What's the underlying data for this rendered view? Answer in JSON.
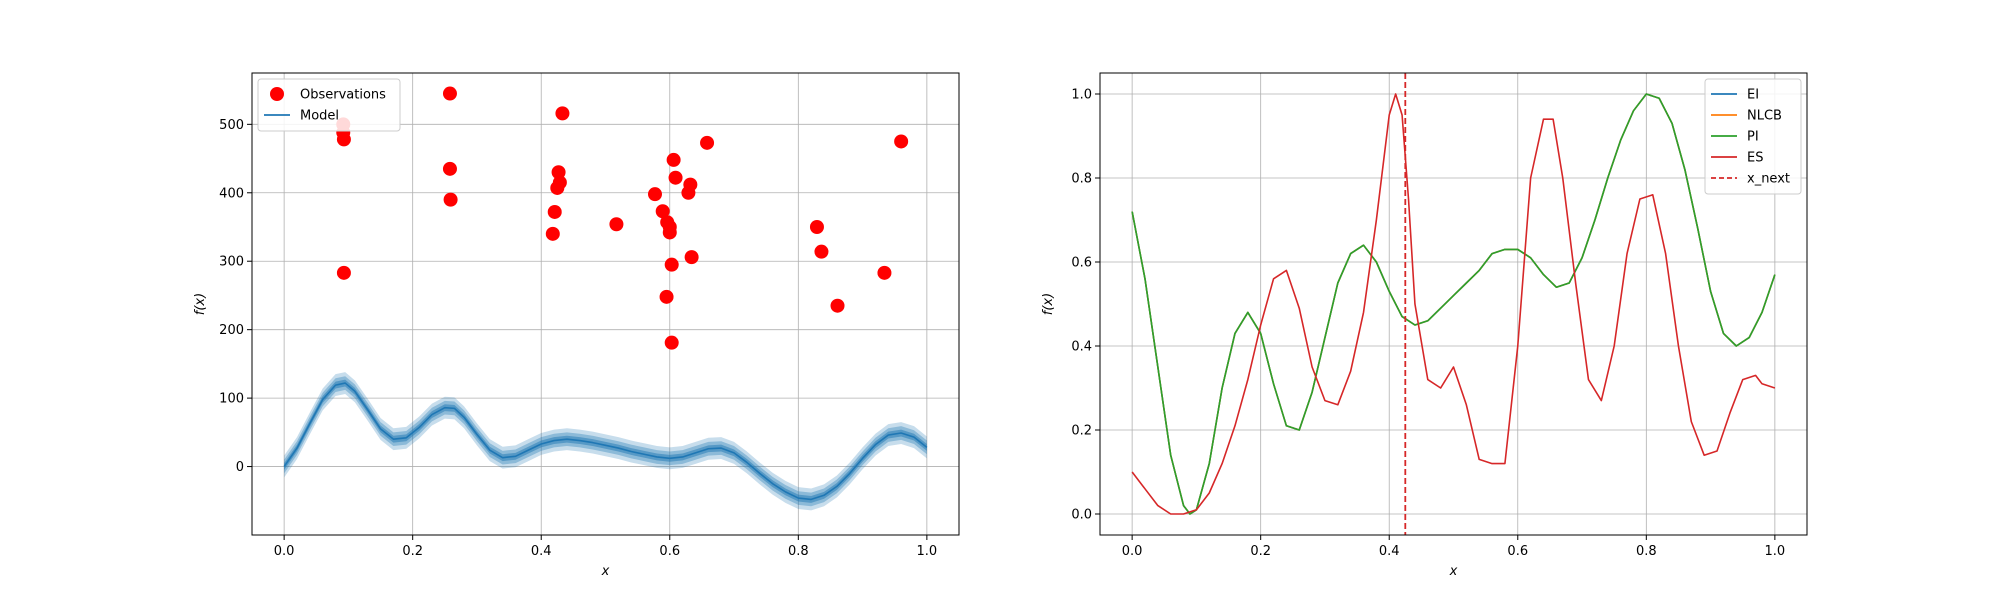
{
  "chart_data": [
    {
      "type": "scatter",
      "xlabel": "x",
      "ylabel": "f(x)",
      "xlim": [
        -0.05,
        1.05
      ],
      "ylim": [
        -100,
        575
      ],
      "xticks": [
        "0.0",
        "0.2",
        "0.4",
        "0.6",
        "0.8",
        "1.0"
      ],
      "yticks": [
        "0",
        "100",
        "200",
        "300",
        "400",
        "500"
      ],
      "grid": true,
      "legend_placement": "upper-left",
      "series": [
        {
          "name": "Observations",
          "kind": "points",
          "color": "#ff0000",
          "x": [
            0.092,
            0.092,
            0.093,
            0.093,
            0.258,
            0.258,
            0.259,
            0.418,
            0.421,
            0.425,
            0.427,
            0.429,
            0.433,
            0.517,
            0.577,
            0.589,
            0.595,
            0.596,
            0.6,
            0.6,
            0.603,
            0.603,
            0.606,
            0.609,
            0.629,
            0.632,
            0.634,
            0.658,
            0.829,
            0.836,
            0.861,
            0.934,
            0.96
          ],
          "y": [
            500,
            488,
            478,
            283,
            545,
            435,
            390,
            340,
            372,
            407,
            430,
            415,
            516,
            354,
            398,
            373,
            248,
            357,
            342,
            350,
            181,
            295,
            448,
            422,
            400,
            412,
            306,
            473,
            350,
            314,
            235,
            283,
            475
          ]
        },
        {
          "name": "Model",
          "kind": "line",
          "color": "#1f77b4",
          "x": [
            0.0,
            0.02,
            0.04,
            0.06,
            0.08,
            0.095,
            0.11,
            0.13,
            0.15,
            0.17,
            0.19,
            0.21,
            0.23,
            0.25,
            0.265,
            0.28,
            0.3,
            0.32,
            0.34,
            0.36,
            0.38,
            0.4,
            0.42,
            0.44,
            0.46,
            0.48,
            0.5,
            0.52,
            0.54,
            0.56,
            0.58,
            0.6,
            0.62,
            0.64,
            0.66,
            0.68,
            0.7,
            0.72,
            0.74,
            0.76,
            0.78,
            0.8,
            0.82,
            0.84,
            0.86,
            0.88,
            0.9,
            0.92,
            0.94,
            0.96,
            0.98,
            1.0
          ],
          "y": [
            0,
            27,
            63,
            98,
            119,
            122,
            110,
            83,
            55,
            40,
            42,
            57,
            76,
            86,
            85,
            72,
            47,
            24,
            13,
            15,
            24,
            33,
            38,
            40,
            38,
            35,
            31,
            27,
            22,
            18,
            14,
            12,
            14,
            20,
            26,
            27,
            20,
            6,
            -10,
            -25,
            -37,
            -46,
            -48,
            -42,
            -29,
            -10,
            12,
            32,
            46,
            49,
            43,
            28
          ],
          "band_color": "#1f77b4"
        }
      ]
    },
    {
      "type": "line",
      "xlabel": "x",
      "ylabel": "f(x)",
      "xlim": [
        -0.05,
        1.05
      ],
      "ylim": [
        -0.05,
        1.05
      ],
      "xticks": [
        "0.0",
        "0.2",
        "0.4",
        "0.6",
        "0.8",
        "1.0"
      ],
      "yticks": [
        "0.0",
        "0.2",
        "0.4",
        "0.6",
        "0.8",
        "1.0"
      ],
      "grid": true,
      "legend_placement": "upper-right",
      "x_next": 0.425,
      "series": [
        {
          "name": "EI",
          "color": "#1f77b4",
          "dashed": false,
          "x": [
            0.0,
            0.02,
            0.04,
            0.06,
            0.08,
            0.09,
            0.1,
            0.12,
            0.14,
            0.16,
            0.18,
            0.2,
            0.22,
            0.24,
            0.26,
            0.28,
            0.3,
            0.32,
            0.34,
            0.36,
            0.38,
            0.4,
            0.42,
            0.44,
            0.46,
            0.48,
            0.5,
            0.52,
            0.54,
            0.56,
            0.58,
            0.6,
            0.62,
            0.64,
            0.66,
            0.68,
            0.7,
            0.72,
            0.74,
            0.76,
            0.78,
            0.8,
            0.82,
            0.84,
            0.86,
            0.88,
            0.9,
            0.92,
            0.94,
            0.96,
            0.98,
            1.0
          ],
          "y": [
            0.72,
            0.56,
            0.35,
            0.14,
            0.02,
            0.0,
            0.01,
            0.12,
            0.3,
            0.43,
            0.48,
            0.43,
            0.31,
            0.21,
            0.2,
            0.29,
            0.42,
            0.55,
            0.62,
            0.64,
            0.6,
            0.53,
            0.47,
            0.45,
            0.46,
            0.49,
            0.52,
            0.55,
            0.58,
            0.62,
            0.63,
            0.63,
            0.61,
            0.57,
            0.54,
            0.55,
            0.61,
            0.7,
            0.8,
            0.89,
            0.96,
            1.0,
            0.99,
            0.93,
            0.82,
            0.68,
            0.53,
            0.43,
            0.4,
            0.42,
            0.48,
            0.57
          ]
        },
        {
          "name": "NLCB",
          "color": "#ff7f0e",
          "dashed": false,
          "x": [
            0.0,
            0.02,
            0.04,
            0.06,
            0.08,
            0.09,
            0.1,
            0.12,
            0.14,
            0.16,
            0.18,
            0.2,
            0.22,
            0.24,
            0.26,
            0.28,
            0.3,
            0.32,
            0.34,
            0.36,
            0.38,
            0.4,
            0.42,
            0.44,
            0.46,
            0.48,
            0.5,
            0.52,
            0.54,
            0.56,
            0.58,
            0.6,
            0.62,
            0.64,
            0.66,
            0.68,
            0.7,
            0.72,
            0.74,
            0.76,
            0.78,
            0.8,
            0.82,
            0.84,
            0.86,
            0.88,
            0.9,
            0.92,
            0.94,
            0.96,
            0.98,
            1.0
          ],
          "y": [
            0.72,
            0.56,
            0.35,
            0.14,
            0.02,
            0.0,
            0.01,
            0.12,
            0.3,
            0.43,
            0.48,
            0.43,
            0.31,
            0.21,
            0.2,
            0.29,
            0.42,
            0.55,
            0.62,
            0.64,
            0.6,
            0.53,
            0.47,
            0.45,
            0.46,
            0.49,
            0.52,
            0.55,
            0.58,
            0.62,
            0.63,
            0.63,
            0.61,
            0.57,
            0.54,
            0.55,
            0.61,
            0.7,
            0.8,
            0.89,
            0.96,
            1.0,
            0.99,
            0.93,
            0.82,
            0.68,
            0.53,
            0.43,
            0.4,
            0.42,
            0.48,
            0.57
          ]
        },
        {
          "name": "PI",
          "color": "#2ca02c",
          "dashed": false,
          "x": [
            0.0,
            0.02,
            0.04,
            0.06,
            0.08,
            0.09,
            0.1,
            0.12,
            0.14,
            0.16,
            0.18,
            0.2,
            0.22,
            0.24,
            0.26,
            0.28,
            0.3,
            0.32,
            0.34,
            0.36,
            0.38,
            0.4,
            0.42,
            0.44,
            0.46,
            0.48,
            0.5,
            0.52,
            0.54,
            0.56,
            0.58,
            0.6,
            0.62,
            0.64,
            0.66,
            0.68,
            0.7,
            0.72,
            0.74,
            0.76,
            0.78,
            0.8,
            0.82,
            0.84,
            0.86,
            0.88,
            0.9,
            0.92,
            0.94,
            0.96,
            0.98,
            1.0
          ],
          "y": [
            0.72,
            0.56,
            0.35,
            0.14,
            0.02,
            0.0,
            0.01,
            0.12,
            0.3,
            0.43,
            0.48,
            0.43,
            0.31,
            0.21,
            0.2,
            0.29,
            0.42,
            0.55,
            0.62,
            0.64,
            0.6,
            0.53,
            0.47,
            0.45,
            0.46,
            0.49,
            0.52,
            0.55,
            0.58,
            0.62,
            0.63,
            0.63,
            0.61,
            0.57,
            0.54,
            0.55,
            0.61,
            0.7,
            0.8,
            0.89,
            0.96,
            1.0,
            0.99,
            0.93,
            0.82,
            0.68,
            0.53,
            0.43,
            0.4,
            0.42,
            0.48,
            0.57
          ]
        },
        {
          "name": "ES",
          "color": "#d62728",
          "dashed": false,
          "x": [
            0.0,
            0.02,
            0.04,
            0.06,
            0.08,
            0.1,
            0.12,
            0.14,
            0.16,
            0.18,
            0.2,
            0.22,
            0.24,
            0.26,
            0.28,
            0.3,
            0.32,
            0.34,
            0.36,
            0.38,
            0.4,
            0.41,
            0.42,
            0.43,
            0.44,
            0.46,
            0.48,
            0.5,
            0.52,
            0.54,
            0.56,
            0.58,
            0.6,
            0.62,
            0.64,
            0.655,
            0.67,
            0.69,
            0.71,
            0.73,
            0.75,
            0.77,
            0.79,
            0.81,
            0.83,
            0.85,
            0.87,
            0.89,
            0.91,
            0.93,
            0.95,
            0.97,
            0.98,
            1.0
          ],
          "y": [
            0.1,
            0.06,
            0.02,
            0.0,
            0.0,
            0.01,
            0.05,
            0.12,
            0.21,
            0.32,
            0.45,
            0.56,
            0.58,
            0.49,
            0.35,
            0.27,
            0.26,
            0.34,
            0.48,
            0.7,
            0.95,
            1.0,
            0.95,
            0.75,
            0.5,
            0.32,
            0.3,
            0.35,
            0.26,
            0.13,
            0.12,
            0.12,
            0.4,
            0.8,
            0.94,
            0.94,
            0.8,
            0.55,
            0.32,
            0.27,
            0.4,
            0.62,
            0.75,
            0.76,
            0.62,
            0.4,
            0.22,
            0.14,
            0.15,
            0.24,
            0.32,
            0.33,
            0.31,
            0.3
          ]
        },
        {
          "name": "x_next",
          "color": "#d62728",
          "dashed": true
        }
      ]
    }
  ]
}
